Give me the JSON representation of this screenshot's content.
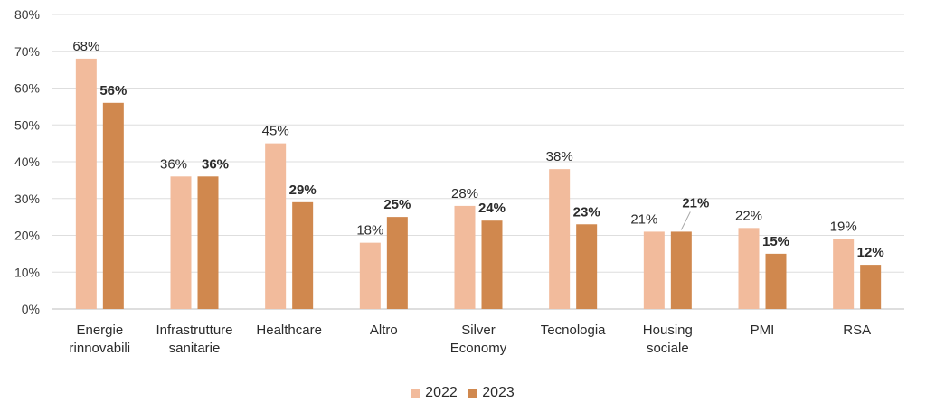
{
  "chart_data": {
    "type": "bar",
    "categories": [
      [
        "Energie",
        "rinnovabili"
      ],
      [
        "Infrastrutture",
        "sanitarie"
      ],
      [
        "Healthcare"
      ],
      [
        "Altro"
      ],
      [
        "Silver",
        "Economy"
      ],
      [
        "Tecnologia"
      ],
      [
        "Housing",
        "sociale"
      ],
      [
        "PMI"
      ],
      [
        "RSA"
      ]
    ],
    "series": [
      {
        "name": "2022",
        "color": "#F2BB9C",
        "values": [
          68,
          36,
          45,
          18,
          28,
          38,
          21,
          22,
          19
        ],
        "labels": [
          "68%",
          "36%",
          "45%",
          "18%",
          "28%",
          "38%",
          "21%",
          "22%",
          "19%"
        ]
      },
      {
        "name": "2023",
        "color": "#D0884E",
        "values": [
          56,
          36,
          29,
          25,
          24,
          23,
          21,
          15,
          12
        ],
        "labels": [
          "56%",
          "36%",
          "29%",
          "25%",
          "24%",
          "23%",
          "21%",
          "15%",
          "12%"
        ]
      }
    ],
    "ylim": [
      0,
      80
    ],
    "yticks": [
      "0%",
      "10%",
      "20%",
      "30%",
      "40%",
      "50%",
      "60%",
      "70%",
      "80%"
    ],
    "grid": true,
    "legend_position": "bottom",
    "title": "",
    "xlabel": "",
    "ylabel": ""
  }
}
